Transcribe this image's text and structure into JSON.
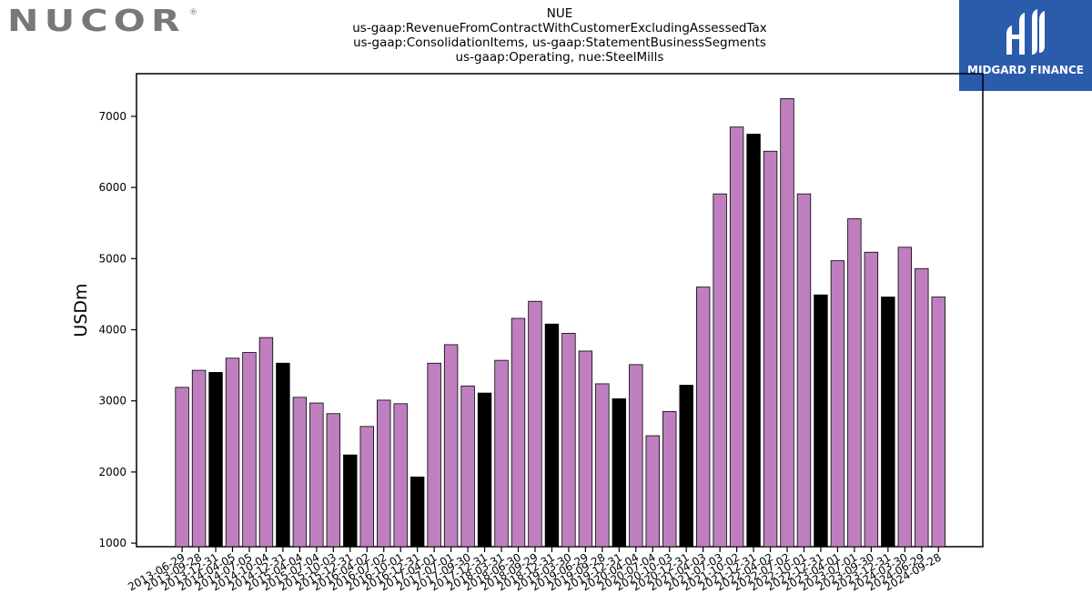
{
  "logo": {
    "text": "NUCOR",
    "registered_mark": "®",
    "color": "#77787b"
  },
  "brand": {
    "name": "MIDGARD FINANCE",
    "background": "#2b5bab"
  },
  "chart_data": {
    "type": "bar",
    "title_lines": [
      "NUE",
      "us-gaap:RevenueFromContractWithCustomerExcludingAssessedTax",
      "us-gaap:ConsolidationItems, us-gaap:StatementBusinessSegments",
      "us-gaap:Operating, nue:SteelMills"
    ],
    "xlabel": "",
    "ylabel": "USDm",
    "ylim": [
      950,
      7600
    ],
    "yticks": [
      1000,
      2000,
      3000,
      4000,
      5000,
      6000,
      7000
    ],
    "grid": false,
    "colors": {
      "quarter": "#bf7fbf",
      "year_end": "#000000",
      "edge": "#000000"
    },
    "categories": [
      "2013-06-29",
      "2013-09-28",
      "2013-12-31",
      "2014-04-05",
      "2014-07-05",
      "2014-10-04",
      "2014-12-31",
      "2015-04-04",
      "2015-07-04",
      "2015-10-03",
      "2015-12-31",
      "2016-04-02",
      "2016-07-02",
      "2016-10-01",
      "2016-12-31",
      "2017-04-01",
      "2017-07-01",
      "2017-09-30",
      "2017-12-31",
      "2018-03-31",
      "2018-06-30",
      "2018-09-29",
      "2018-12-31",
      "2019-03-30",
      "2019-06-29",
      "2019-09-28",
      "2019-12-31",
      "2020-04-04",
      "2020-07-04",
      "2020-10-03",
      "2020-12-31",
      "2021-04-03",
      "2021-07-03",
      "2021-10-02",
      "2021-12-31",
      "2022-04-02",
      "2022-07-02",
      "2022-10-01",
      "2022-12-31",
      "2023-04-01",
      "2023-07-01",
      "2023-09-30",
      "2023-12-31",
      "2024-03-30",
      "2024-06-29",
      "2024-09-28"
    ],
    "values": [
      3190,
      3430,
      3400,
      3600,
      3680,
      3890,
      3530,
      3050,
      2970,
      2820,
      2240,
      2640,
      3010,
      2960,
      1930,
      3530,
      3790,
      3210,
      3110,
      3570,
      4160,
      4400,
      4080,
      3950,
      3700,
      3240,
      3030,
      3510,
      2510,
      2850,
      3220,
      4600,
      5910,
      6850,
      6750,
      6510,
      7250,
      5910,
      4490,
      4970,
      5560,
      5090,
      4460,
      5160,
      4860,
      4460
    ],
    "year_end": [
      false,
      false,
      true,
      false,
      false,
      false,
      true,
      false,
      false,
      false,
      true,
      false,
      false,
      false,
      true,
      false,
      false,
      false,
      true,
      false,
      false,
      false,
      true,
      false,
      false,
      false,
      true,
      false,
      false,
      false,
      true,
      false,
      false,
      false,
      true,
      false,
      false,
      false,
      true,
      false,
      false,
      false,
      true,
      false,
      false,
      false
    ]
  }
}
